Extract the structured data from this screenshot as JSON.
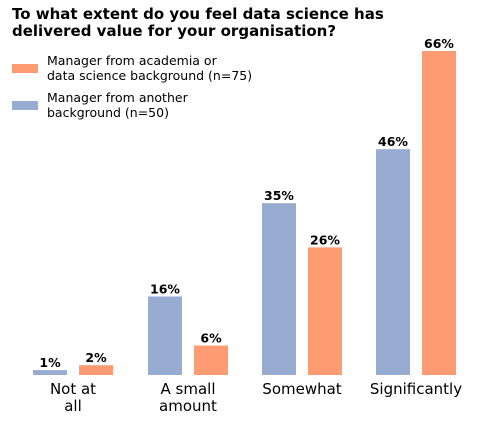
{
  "chart_data": {
    "type": "bar",
    "title_lines": [
      "To what extent do you feel data science has",
      "delivered value for your organisation?"
    ],
    "categories": [
      [
        "Not at",
        "all"
      ],
      [
        "A small",
        "amount"
      ],
      [
        "Somewhat"
      ],
      [
        "Significantly"
      ]
    ],
    "series": [
      {
        "name_lines": [
          "Manager from another",
          "background (n=50)"
        ],
        "color": "#98abd0",
        "values": [
          1,
          16,
          35,
          46
        ],
        "labels": [
          "1%",
          "16%",
          "35%",
          "46%"
        ]
      },
      {
        "name_lines": [
          "Manager from academia or",
          "data science background (n=75)"
        ],
        "color": "#fe9b72",
        "values": [
          2,
          6,
          26,
          66
        ],
        "labels": [
          "2%",
          "6%",
          "26%",
          "66%"
        ]
      }
    ],
    "legend_order": [
      1,
      0
    ],
    "legend_position": "top-left",
    "ylim": [
      0,
      66
    ],
    "grid": false
  }
}
